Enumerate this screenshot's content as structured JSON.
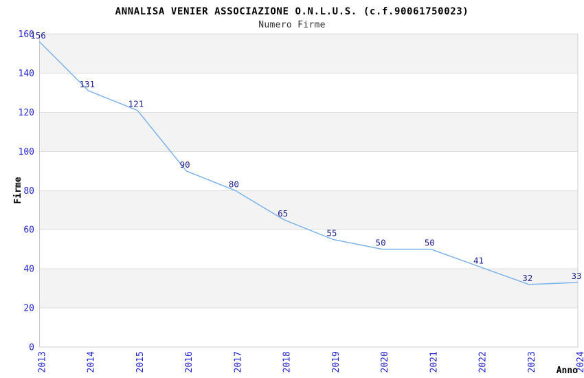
{
  "chart_data": {
    "type": "line",
    "title": "ANNALISA VENIER ASSOCIAZIONE O.N.L.U.S. (c.f.90061750023)",
    "subtitle": "Numero Firme",
    "xlabel": "Anno",
    "ylabel": "Firme",
    "x": [
      2013,
      2014,
      2015,
      2016,
      2017,
      2018,
      2019,
      2020,
      2021,
      2022,
      2023,
      2024
    ],
    "series": [
      {
        "name": "Numero Firme",
        "values": [
          156,
          131,
          121,
          90,
          80,
          65,
          55,
          50,
          50,
          41,
          32,
          33
        ]
      }
    ],
    "data_labels": true,
    "ylim": [
      0,
      160
    ],
    "ytick_step": 20,
    "grid": "horizontal-bands",
    "legend": false,
    "colors": {
      "line": "#7cb3ea",
      "data_label": "#1f1f8f",
      "tick_label": "#2323cc",
      "band": "#f3f3f3",
      "grid_line": "#dedede",
      "plot_border": "#cccccc",
      "title": "#000000",
      "subtitle": "#303030",
      "axis_title": "#000000"
    }
  }
}
